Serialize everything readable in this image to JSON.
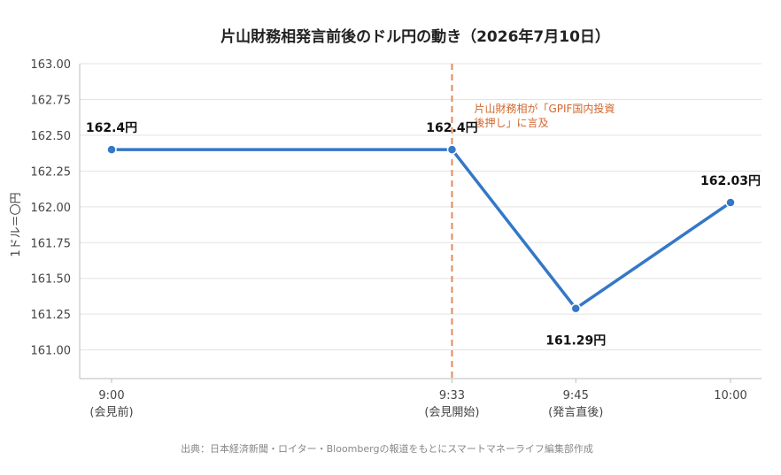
{
  "chart_data": {
    "type": "line",
    "title": "片山財務相発言前後のドル円の動き（2026年7月10日）",
    "ylabel": "1ドル＝〇円",
    "ylim": [
      160.8,
      163.0
    ],
    "yticks": [
      "161.00",
      "161.25",
      "161.50",
      "161.75",
      "162.00",
      "162.25",
      "162.50",
      "162.75",
      "163.00"
    ],
    "ytick_values": [
      161.0,
      161.25,
      161.5,
      161.75,
      162.0,
      162.25,
      162.5,
      162.75,
      163.0
    ],
    "x": [
      "9:00",
      "9:33",
      "9:45",
      "10:00"
    ],
    "x_sublabels": [
      "(会見前)",
      "(会見開始)",
      "(発言直後)",
      ""
    ],
    "x_minutes": [
      0,
      33,
      45,
      60
    ],
    "values": [
      162.4,
      162.4,
      161.29,
      162.03
    ],
    "data_labels": [
      "162.4円",
      "162.4円",
      "161.29円",
      "162.03円"
    ],
    "data_label_positions": [
      "above",
      "above",
      "below",
      "above"
    ],
    "grid": true,
    "line_color": "#3478c6",
    "annotation": {
      "x_minute": 33,
      "line_color": "#e8865a",
      "text_lines": [
        "片山財務相が「GPIF国内投資",
        "後押し」に言及"
      ],
      "text_color": "#d2672e"
    },
    "source": "出典：日本経済新聞・ロイター・Bloombergの報道をもとにスマートマネーライフ編集部作成"
  }
}
